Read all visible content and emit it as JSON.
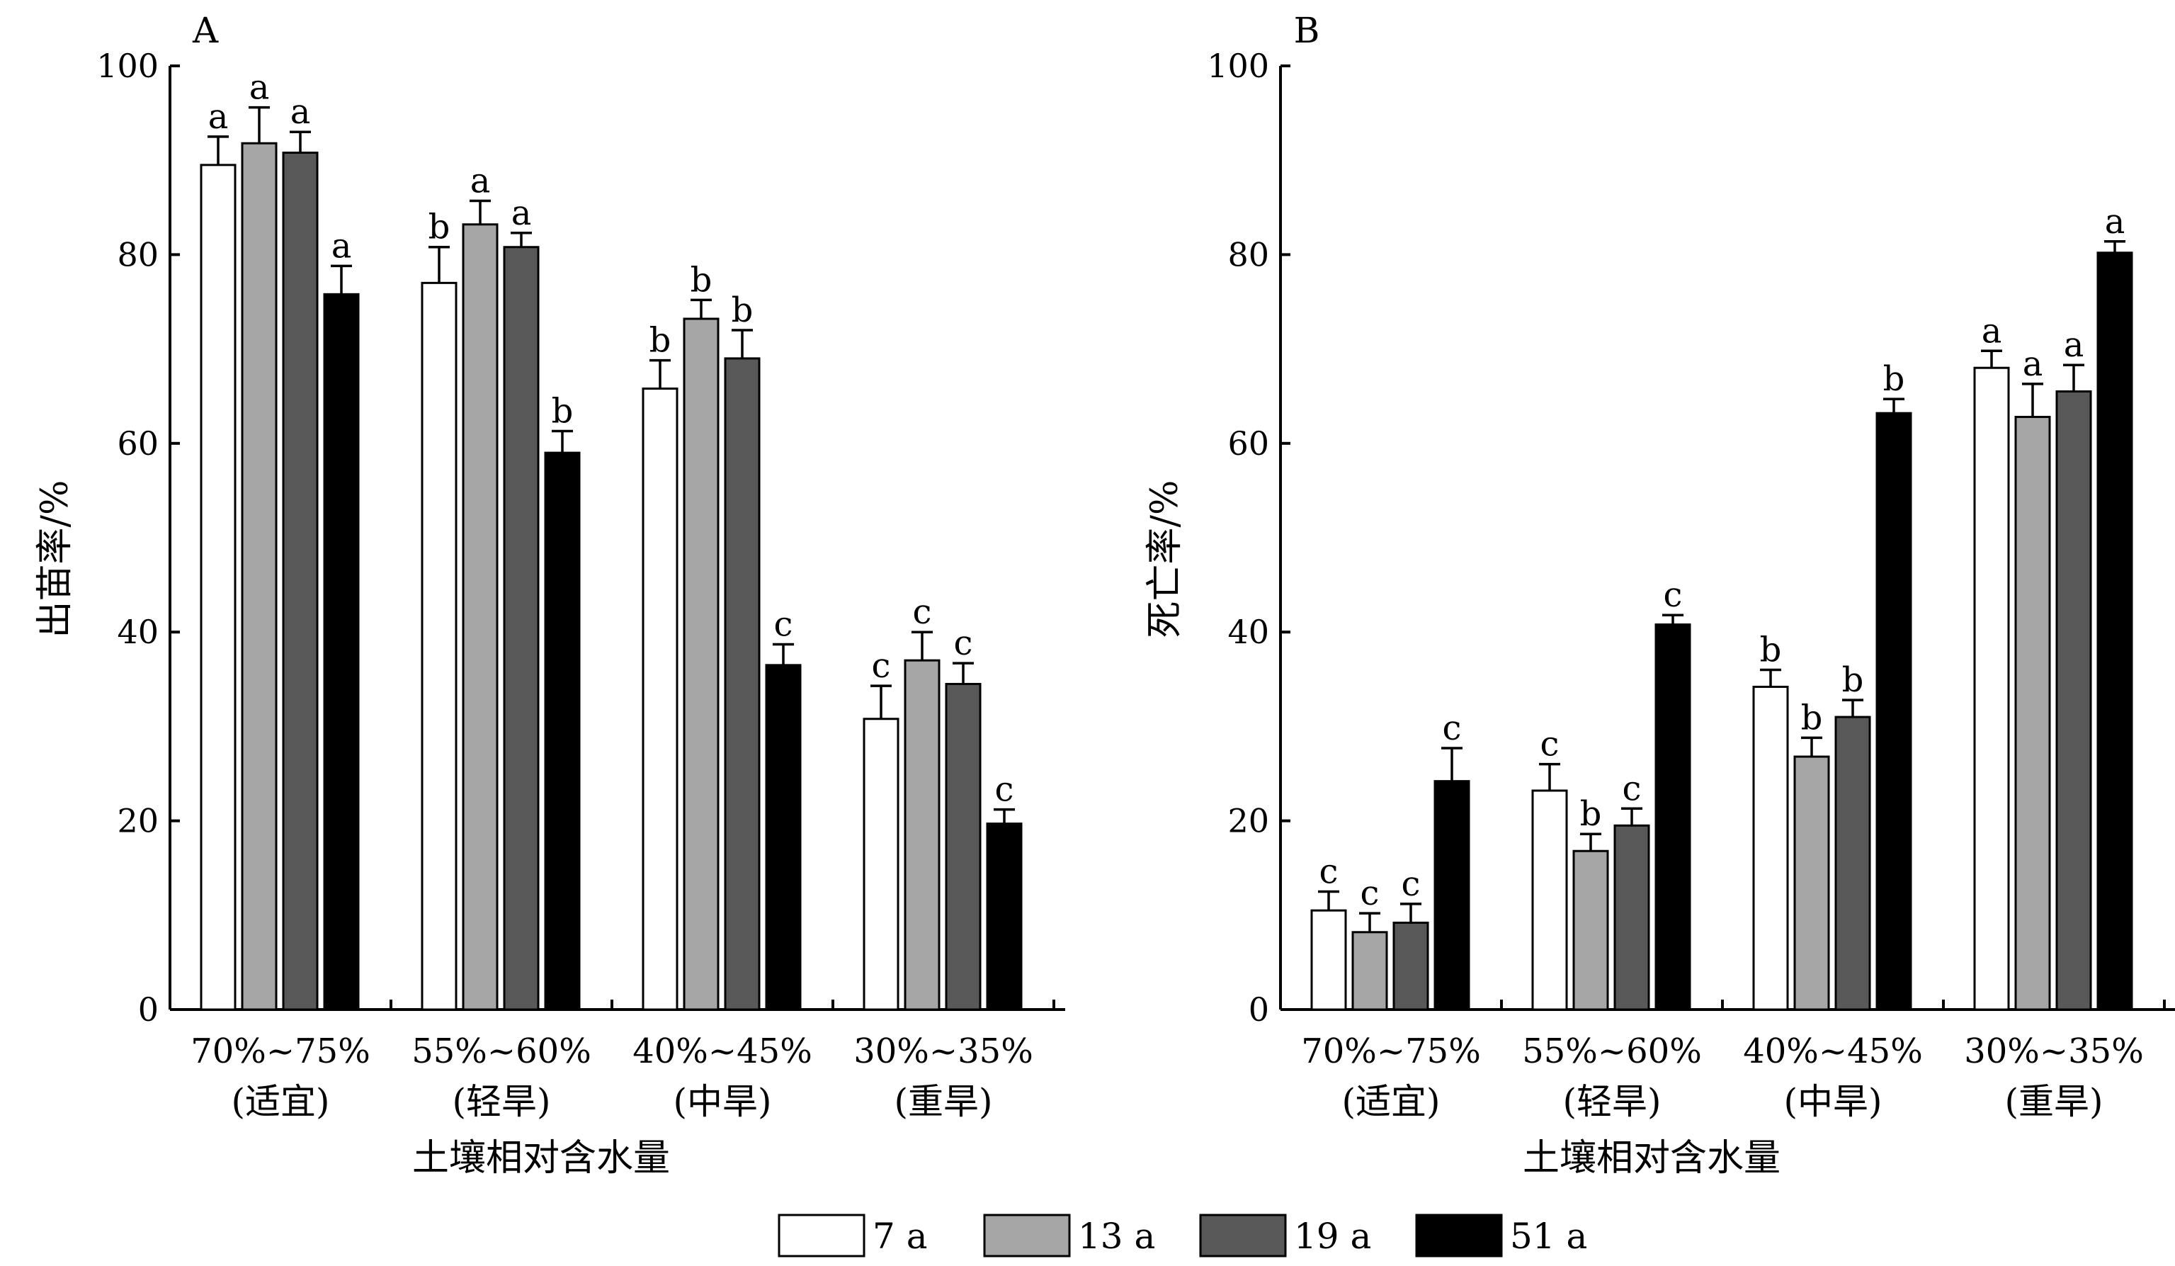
{
  "legend": {
    "items": [
      {
        "label": "7 a",
        "color": "#ffffff"
      },
      {
        "label": "13 a",
        "color": "#a6a6a6"
      },
      {
        "label": "19 a",
        "color": "#595959"
      },
      {
        "label": "51 a",
        "color": "#000000"
      }
    ]
  },
  "chart_data": [
    {
      "type": "bar",
      "panel_label": "A",
      "ylabel": "出苗率/%",
      "xlabel": "土壤相对含水量",
      "ylim": [
        0,
        100
      ],
      "yticks": [
        0,
        20,
        40,
        60,
        80,
        100
      ],
      "grid": false,
      "categories": [
        {
          "line1": "70%~75%",
          "line2": "(适宜)"
        },
        {
          "line1": "55%~60%",
          "line2": "(轻旱)"
        },
        {
          "line1": "40%~45%",
          "line2": "(中旱)"
        },
        {
          "line1": "30%~35%",
          "line2": "(重旱)"
        }
      ],
      "series": [
        {
          "name": "7 a",
          "color": "#ffffff",
          "values": [
            89.5,
            77.0,
            65.8,
            30.8
          ],
          "errors": [
            3.0,
            3.8,
            3.0,
            3.5
          ],
          "letters": [
            "a",
            "b",
            "b",
            "c"
          ]
        },
        {
          "name": "13 a",
          "color": "#a6a6a6",
          "values": [
            91.8,
            83.2,
            73.2,
            37.0
          ],
          "errors": [
            3.8,
            2.5,
            2.0,
            3.0
          ],
          "letters": [
            "a",
            "a",
            "b",
            "c"
          ]
        },
        {
          "name": "19 a",
          "color": "#595959",
          "values": [
            90.8,
            80.8,
            69.0,
            34.5
          ],
          "errors": [
            2.2,
            1.5,
            3.0,
            2.2
          ],
          "letters": [
            "a",
            "a",
            "b",
            "c"
          ]
        },
        {
          "name": "51 a",
          "color": "#000000",
          "values": [
            75.8,
            59.0,
            36.5,
            19.7
          ],
          "errors": [
            3.0,
            2.3,
            2.2,
            1.5
          ],
          "letters": [
            "a",
            "b",
            "c",
            "c"
          ]
        }
      ]
    },
    {
      "type": "bar",
      "panel_label": "B",
      "ylabel": "死亡率/%",
      "xlabel": "土壤相对含水量",
      "ylim": [
        0,
        100
      ],
      "yticks": [
        0,
        20,
        40,
        60,
        80,
        100
      ],
      "grid": false,
      "categories": [
        {
          "line1": "70%~75%",
          "line2": "(适宜)"
        },
        {
          "line1": "55%~60%",
          "line2": "(轻旱)"
        },
        {
          "line1": "40%~45%",
          "line2": "(中旱)"
        },
        {
          "line1": "30%~35%",
          "line2": "(重旱)"
        }
      ],
      "series": [
        {
          "name": "7 a",
          "color": "#ffffff",
          "values": [
            10.5,
            23.2,
            34.2,
            68.0
          ],
          "errors": [
            2.0,
            2.8,
            1.8,
            1.8
          ],
          "letters": [
            "c",
            "c",
            "b",
            "a"
          ]
        },
        {
          "name": "13 a",
          "color": "#a6a6a6",
          "values": [
            8.2,
            16.8,
            26.8,
            62.8
          ],
          "errors": [
            2.0,
            1.8,
            2.0,
            3.5
          ],
          "letters": [
            "c",
            "b",
            "b",
            "a"
          ]
        },
        {
          "name": "19 a",
          "color": "#595959",
          "values": [
            9.2,
            19.5,
            31.0,
            65.5
          ],
          "errors": [
            2.0,
            1.8,
            1.8,
            2.8
          ],
          "letters": [
            "c",
            "c",
            "b",
            "a"
          ]
        },
        {
          "name": "51 a",
          "color": "#000000",
          "values": [
            24.2,
            40.8,
            63.2,
            80.2
          ],
          "errors": [
            3.5,
            1.0,
            1.5,
            1.2
          ],
          "letters": [
            "c",
            "c",
            "b",
            "a"
          ]
        }
      ]
    }
  ]
}
